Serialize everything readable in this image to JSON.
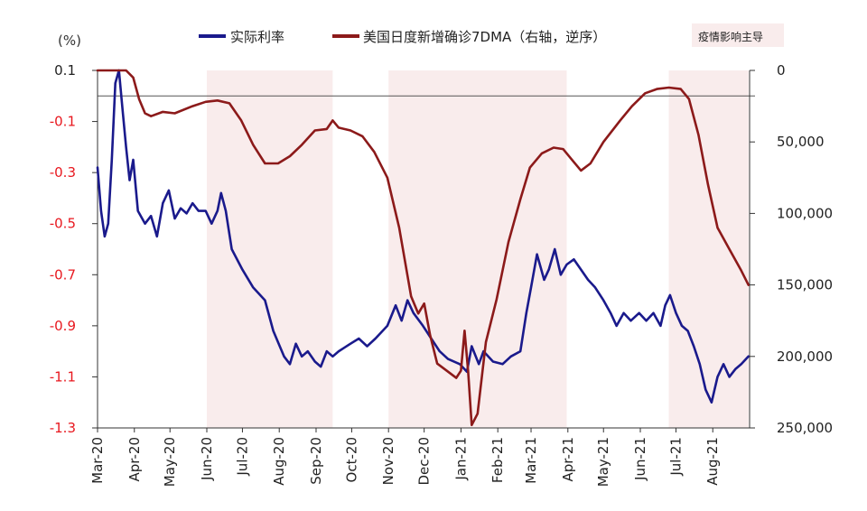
{
  "chart_data": {
    "type": "line",
    "left_unit_label": "(%)",
    "left_axis": {
      "ylim": [
        -1.3,
        0.1
      ],
      "ticks": [
        0.1,
        -0.1,
        -0.3,
        -0.5,
        -0.7,
        -0.9,
        -1.1,
        -1.3
      ],
      "tick_labels": [
        "0.1",
        "-0.1",
        "-0.3",
        "-0.5",
        "-0.7",
        "-0.9",
        "-1.1",
        "-1.3"
      ],
      "color": "#e8181f"
    },
    "right_axis": {
      "ylim": [
        0,
        250000
      ],
      "reversed": true,
      "ticks": [
        0,
        50000,
        100000,
        150000,
        200000,
        250000
      ],
      "tick_labels": [
        "0",
        "50,000",
        "100,000",
        "150,000",
        "200,000",
        "250,000"
      ],
      "color": "#222222"
    },
    "x_labels": [
      "Mar-20",
      "Apr-20",
      "May-20",
      "Jun-20",
      "Jul-20",
      "Aug-20",
      "Sep-20",
      "Oct-20",
      "Nov-20",
      "Dec-20",
      "Jan-21",
      "Feb-21",
      "Mar-21",
      "Apr-21",
      "May-21",
      "Jun-21",
      "Jul-21",
      "Aug-21"
    ],
    "zero_line": 0,
    "legend": [
      {
        "name": "实际利率",
        "color": "#1a1a8c"
      },
      {
        "name": "美国日度新增确诊7DMA（右轴，逆序）",
        "color": "#8c1a1a"
      },
      {
        "name": "疫情影响主导",
        "color": "#f9ecec"
      }
    ],
    "shaded_periods": [
      [
        "2020-06-01",
        "2020-09-15"
      ],
      [
        "2020-11-01",
        "2021-03-31"
      ],
      [
        "2021-06-25",
        "2021-08-31"
      ]
    ],
    "series": [
      {
        "name": "实际利率",
        "axis": "left",
        "color": "#1a1a8c",
        "points": [
          [
            "2020-03-01",
            -0.28
          ],
          [
            "2020-03-04",
            -0.45
          ],
          [
            "2020-03-07",
            -0.55
          ],
          [
            "2020-03-10",
            -0.5
          ],
          [
            "2020-03-13",
            -0.25
          ],
          [
            "2020-03-16",
            0.05
          ],
          [
            "2020-03-19",
            0.1
          ],
          [
            "2020-03-22",
            -0.05
          ],
          [
            "2020-03-25",
            -0.2
          ],
          [
            "2020-03-28",
            -0.33
          ],
          [
            "2020-03-31",
            -0.25
          ],
          [
            "2020-04-04",
            -0.45
          ],
          [
            "2020-04-10",
            -0.5
          ],
          [
            "2020-04-15",
            -0.47
          ],
          [
            "2020-04-20",
            -0.55
          ],
          [
            "2020-04-25",
            -0.42
          ],
          [
            "2020-04-30",
            -0.37
          ],
          [
            "2020-05-05",
            -0.48
          ],
          [
            "2020-05-10",
            -0.44
          ],
          [
            "2020-05-15",
            -0.46
          ],
          [
            "2020-05-20",
            -0.42
          ],
          [
            "2020-05-25",
            -0.45
          ],
          [
            "2020-05-31",
            -0.45
          ],
          [
            "2020-06-05",
            -0.5
          ],
          [
            "2020-06-10",
            -0.45
          ],
          [
            "2020-06-13",
            -0.38
          ],
          [
            "2020-06-17",
            -0.45
          ],
          [
            "2020-06-22",
            -0.6
          ],
          [
            "2020-07-01",
            -0.68
          ],
          [
            "2020-07-10",
            -0.75
          ],
          [
            "2020-07-20",
            -0.8
          ],
          [
            "2020-07-27",
            -0.92
          ],
          [
            "2020-08-05",
            -1.02
          ],
          [
            "2020-08-10",
            -1.05
          ],
          [
            "2020-08-15",
            -0.97
          ],
          [
            "2020-08-20",
            -1.02
          ],
          [
            "2020-08-25",
            -1.0
          ],
          [
            "2020-08-31",
            -1.04
          ],
          [
            "2020-09-05",
            -1.06
          ],
          [
            "2020-09-10",
            -1.0
          ],
          [
            "2020-09-15",
            -1.02
          ],
          [
            "2020-09-20",
            -1.0
          ],
          [
            "2020-09-30",
            -0.97
          ],
          [
            "2020-10-07",
            -0.95
          ],
          [
            "2020-10-14",
            -0.98
          ],
          [
            "2020-10-21",
            -0.95
          ],
          [
            "2020-10-31",
            -0.9
          ],
          [
            "2020-11-07",
            -0.82
          ],
          [
            "2020-11-12",
            -0.88
          ],
          [
            "2020-11-17",
            -0.8
          ],
          [
            "2020-11-22",
            -0.85
          ],
          [
            "2020-11-30",
            -0.9
          ],
          [
            "2020-12-07",
            -0.95
          ],
          [
            "2020-12-14",
            -1.0
          ],
          [
            "2020-12-21",
            -1.03
          ],
          [
            "2020-12-31",
            -1.05
          ],
          [
            "2021-01-06",
            -1.08
          ],
          [
            "2021-01-10",
            -0.98
          ],
          [
            "2021-01-16",
            -1.05
          ],
          [
            "2021-01-20",
            -1.0
          ],
          [
            "2021-01-28",
            -1.04
          ],
          [
            "2021-02-05",
            -1.05
          ],
          [
            "2021-02-12",
            -1.02
          ],
          [
            "2021-02-20",
            -1.0
          ],
          [
            "2021-02-25",
            -0.85
          ],
          [
            "2021-03-01",
            -0.75
          ],
          [
            "2021-03-06",
            -0.62
          ],
          [
            "2021-03-12",
            -0.72
          ],
          [
            "2021-03-16",
            -0.68
          ],
          [
            "2021-03-21",
            -0.6
          ],
          [
            "2021-03-26",
            -0.7
          ],
          [
            "2021-03-31",
            -0.66
          ],
          [
            "2021-04-06",
            -0.64
          ],
          [
            "2021-04-12",
            -0.68
          ],
          [
            "2021-04-18",
            -0.72
          ],
          [
            "2021-04-24",
            -0.75
          ],
          [
            "2021-05-01",
            -0.8
          ],
          [
            "2021-05-07",
            -0.85
          ],
          [
            "2021-05-12",
            -0.9
          ],
          [
            "2021-05-18",
            -0.85
          ],
          [
            "2021-05-24",
            -0.88
          ],
          [
            "2021-05-31",
            -0.85
          ],
          [
            "2021-06-06",
            -0.88
          ],
          [
            "2021-06-12",
            -0.85
          ],
          [
            "2021-06-18",
            -0.9
          ],
          [
            "2021-06-22",
            -0.82
          ],
          [
            "2021-06-26",
            -0.78
          ],
          [
            "2021-07-01",
            -0.85
          ],
          [
            "2021-07-06",
            -0.9
          ],
          [
            "2021-07-11",
            -0.92
          ],
          [
            "2021-07-16",
            -0.98
          ],
          [
            "2021-07-21",
            -1.05
          ],
          [
            "2021-07-26",
            -1.15
          ],
          [
            "2021-07-31",
            -1.2
          ],
          [
            "2021-08-05",
            -1.1
          ],
          [
            "2021-08-10",
            -1.05
          ],
          [
            "2021-08-15",
            -1.1
          ],
          [
            "2021-08-20",
            -1.07
          ],
          [
            "2021-08-25",
            -1.05
          ],
          [
            "2021-08-31",
            -1.02
          ]
        ]
      },
      {
        "name": "美国日度新增确诊7DMA（右轴，逆序）",
        "axis": "right",
        "color": "#8c1a1a",
        "points": [
          [
            "2020-03-01",
            0
          ],
          [
            "2020-03-15",
            0
          ],
          [
            "2020-03-25",
            0
          ],
          [
            "2020-03-31",
            5000
          ],
          [
            "2020-04-05",
            20000
          ],
          [
            "2020-04-10",
            30000
          ],
          [
            "2020-04-15",
            32000
          ],
          [
            "2020-04-25",
            29000
          ],
          [
            "2020-05-05",
            30000
          ],
          [
            "2020-05-20",
            25000
          ],
          [
            "2020-05-31",
            22000
          ],
          [
            "2020-06-10",
            21000
          ],
          [
            "2020-06-20",
            23000
          ],
          [
            "2020-06-30",
            35000
          ],
          [
            "2020-07-10",
            52000
          ],
          [
            "2020-07-20",
            65000
          ],
          [
            "2020-07-31",
            65000
          ],
          [
            "2020-08-10",
            60000
          ],
          [
            "2020-08-20",
            52000
          ],
          [
            "2020-08-31",
            42000
          ],
          [
            "2020-09-10",
            41000
          ],
          [
            "2020-09-15",
            35000
          ],
          [
            "2020-09-20",
            40000
          ],
          [
            "2020-09-30",
            42000
          ],
          [
            "2020-10-10",
            46000
          ],
          [
            "2020-10-20",
            57000
          ],
          [
            "2020-10-31",
            75000
          ],
          [
            "2020-11-10",
            110000
          ],
          [
            "2020-11-20",
            158000
          ],
          [
            "2020-11-26",
            170000
          ],
          [
            "2020-12-01",
            163000
          ],
          [
            "2020-12-06",
            185000
          ],
          [
            "2020-12-12",
            205000
          ],
          [
            "2020-12-20",
            210000
          ],
          [
            "2020-12-28",
            215000
          ],
          [
            "2021-01-01",
            210000
          ],
          [
            "2021-01-04",
            182000
          ],
          [
            "2021-01-07",
            210000
          ],
          [
            "2021-01-10",
            248000
          ],
          [
            "2021-01-15",
            240000
          ],
          [
            "2021-01-22",
            190000
          ],
          [
            "2021-01-31",
            160000
          ],
          [
            "2021-02-10",
            120000
          ],
          [
            "2021-02-20",
            90000
          ],
          [
            "2021-02-28",
            68000
          ],
          [
            "2021-03-10",
            58000
          ],
          [
            "2021-03-20",
            54000
          ],
          [
            "2021-03-28",
            55000
          ],
          [
            "2021-04-05",
            63000
          ],
          [
            "2021-04-12",
            70000
          ],
          [
            "2021-04-20",
            65000
          ],
          [
            "2021-05-01",
            50000
          ],
          [
            "2021-05-15",
            35000
          ],
          [
            "2021-05-25",
            25000
          ],
          [
            "2021-06-05",
            16000
          ],
          [
            "2021-06-15",
            13000
          ],
          [
            "2021-06-25",
            12000
          ],
          [
            "2021-07-05",
            13000
          ],
          [
            "2021-07-12",
            20000
          ],
          [
            "2021-07-20",
            45000
          ],
          [
            "2021-07-28",
            80000
          ],
          [
            "2021-08-05",
            110000
          ],
          [
            "2021-08-15",
            125000
          ],
          [
            "2021-08-25",
            140000
          ],
          [
            "2021-08-31",
            150000
          ]
        ]
      }
    ]
  }
}
